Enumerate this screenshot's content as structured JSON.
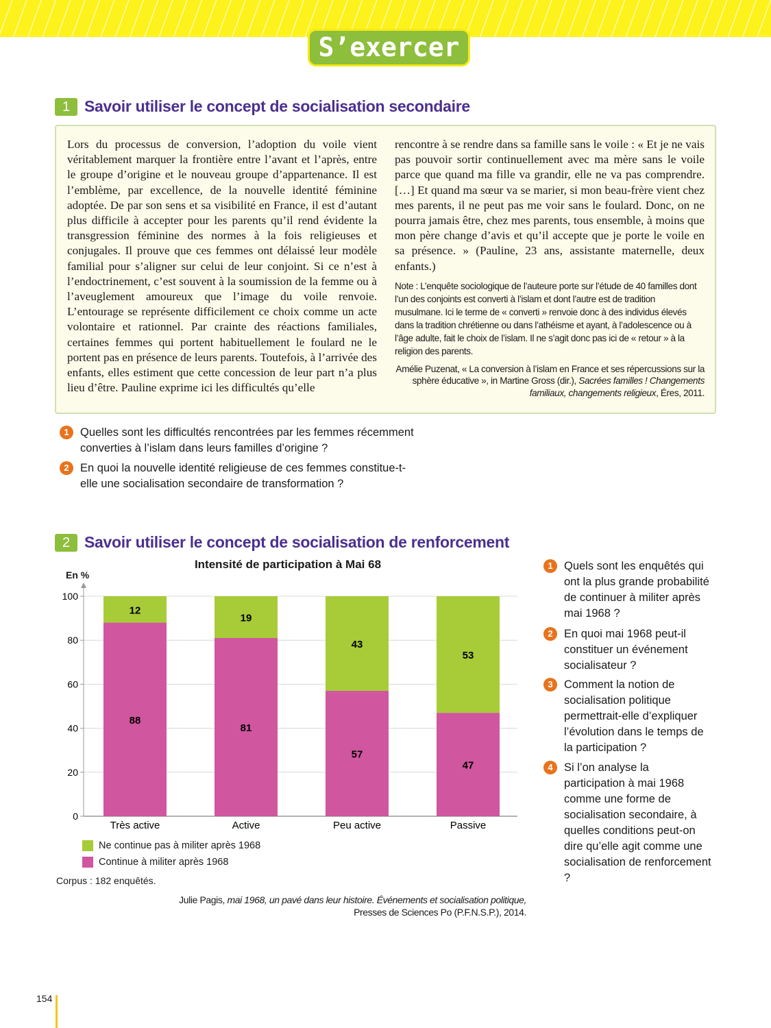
{
  "header": {
    "title": "S’exercer"
  },
  "section1": {
    "number": "1",
    "title": "Savoir utiliser le concept de socialisation secondaire",
    "text_left": "Lors du processus de conversion, l’adoption du voile vient véritablement marquer la frontière entre l’avant et l’après, entre le groupe d’origine et le nouveau groupe d’appartenance. Il est l’emblème, par excellence, de la nouvelle identité féminine adoptée. De par son sens et sa visibilité en France, il est d’autant plus difficile à accepter pour les parents qu’il rend évidente la transgression féminine des normes à la fois religieuses et conjugales. Il prouve que ces femmes ont délaissé leur modèle familial pour s’aligner sur celui de leur conjoint. Si ce n’est à l’endoctrinement, c’est souvent à la soumission de la femme ou à l’aveuglement amoureux que l’image du voile renvoie. L’entourage se représente difficilement ce choix comme un acte volontaire et rationnel. Par crainte des réactions familiales, certaines femmes qui portent habituellement le foulard ne le portent pas en présence de leurs parents. Toutefois, à l’arrivée des enfants, elles estiment que cette concession de leur part n’a plus lieu d’être. Pauline exprime ici les difficultés qu’elle",
    "text_right": "rencontre à se rendre dans sa famille sans le voile : « Et je ne vais pas pouvoir sortir continuellement avec ma mère sans le voile parce que quand ma fille va grandir, elle ne va pas comprendre. […] Et quand ma sœur va se marier, si mon beau-frère vient chez mes parents, il ne peut pas me voir sans le foulard. Donc, on ne pourra jamais être, chez mes parents, tous ensemble, à moins que mon père change d’avis et qu’il accepte que je porte le voile en sa présence. » (Pauline, 23 ans, assistante maternelle, deux enfants.)",
    "note": "Note : L’enquête sociologique de l’auteure porte sur l’étude de 40 familles dont l’un des conjoints est converti à l’islam et dont l’autre est de tradition musulmane. Ici le terme de « converti » renvoie donc à des individus élevés dans la tradition chrétienne ou dans l’athéisme et ayant, à l’adolescence ou à l’âge adulte, fait le choix de l’islam. Il ne s’agit donc pas ici de « retour » à la religion des parents.",
    "source_plain": "Amélie Puzenat, « La conversion à l’islam en France et ses répercussions sur la sphère éducative », in Martine Gross (dir.), ",
    "source_italic": "Sacrées familles ! Changements familiaux, changements religieux",
    "source_end": ", Éres, 2011.",
    "questions": [
      {
        "n": "1",
        "text": "Quelles sont les difficultés rencontrées par les femmes récemment converties à l’islam dans leurs familles d’origine ?"
      },
      {
        "n": "2",
        "text": "En quoi la nouvelle identité religieuse de ces femmes constitue-t-elle une socialisation secondaire de transformation ?"
      }
    ]
  },
  "section2": {
    "number": "2",
    "title": "Savoir utiliser le concept de socialisation de renforcement",
    "corpus": "Corpus : 182 enquêtés.",
    "source_plain": "Julie Pagis, ",
    "source_italic": "mai 1968, un pavé dans leur histoire. Événements et socialisation politique,",
    "source_line2": "Presses de Sciences Po (P.F.N.S.P.), 2014.",
    "questions": [
      {
        "n": "1",
        "text": "Quels sont les enquêtés qui ont la plus grande probabilité de continuer à militer après mai 1968 ?"
      },
      {
        "n": "2",
        "text": "En quoi mai 1968 peut-il constituer un événement socialisateur ?"
      },
      {
        "n": "3",
        "text": "Comment la notion de socialisation politique permettrait-elle d’expliquer l’évolution dans le temps de la participation ?"
      },
      {
        "n": "4",
        "text": "Si l’on analyse la participation à mai 1968 comme une forme de socialisation secondaire, à quelles conditions peut-on dire qu’elle agit comme une socialisation de renforcement ?"
      }
    ]
  },
  "chart_data": {
    "type": "bar",
    "stacked": true,
    "title": "Intensité de participation à Mai 68",
    "ylabel": "En %",
    "ylim": [
      0,
      100
    ],
    "yticks": [
      "0",
      "20",
      "40",
      "60",
      "80",
      "100"
    ],
    "categories": [
      "Très active",
      "Active",
      "Peu active",
      "Passive"
    ],
    "series": [
      {
        "name": "Continue à militer après 1968",
        "color": "#cf569f",
        "values": [
          88,
          81,
          57,
          47
        ]
      },
      {
        "name": "Ne continue pas à militer après 1968",
        "color": "#a8cb38",
        "values": [
          12,
          19,
          43,
          53
        ]
      }
    ]
  },
  "footer": {
    "page": "154"
  }
}
